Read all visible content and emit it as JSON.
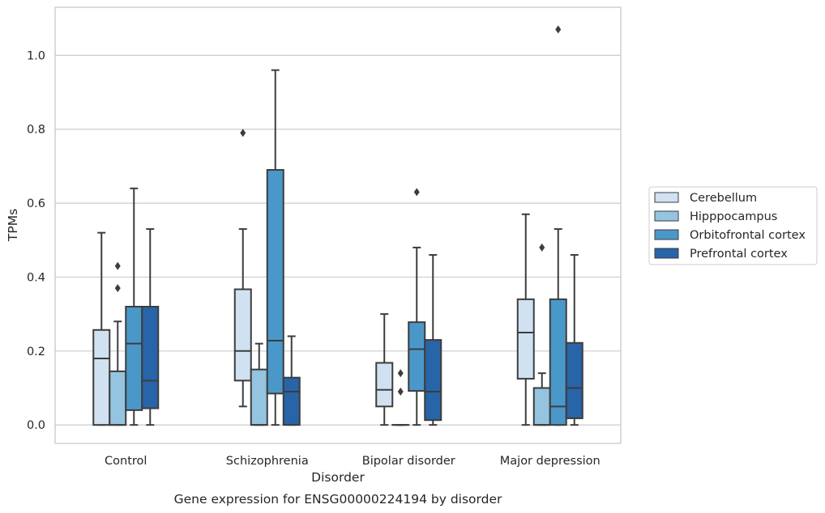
{
  "chart_data": {
    "type": "box",
    "caption": "Gene expression for ENSG00000224194 by disorder",
    "xlabel": "Disorder",
    "ylabel": "TPMs",
    "ylim": [
      -0.05,
      1.13
    ],
    "yticks": [
      0.0,
      0.2,
      0.4,
      0.6,
      0.8,
      1.0
    ],
    "ytick_labels": [
      "0.0",
      "0.2",
      "0.4",
      "0.6",
      "0.8",
      "1.0"
    ],
    "grid": "horizontal",
    "legend_position": "right",
    "categories": [
      "Control",
      "Schizophrenia",
      "Bipolar disorder",
      "Major depression"
    ],
    "series": [
      {
        "name": "Cerebellum",
        "color": "#d0e1f1",
        "boxes": [
          {
            "whisker_low": 0.0,
            "q1": 0.0,
            "median": 0.18,
            "q3": 0.257,
            "whisker_high": 0.52,
            "outliers": []
          },
          {
            "whisker_low": 0.05,
            "q1": 0.12,
            "median": 0.2,
            "q3": 0.367,
            "whisker_high": 0.53,
            "outliers": [
              0.79
            ]
          },
          {
            "whisker_low": 0.0,
            "q1": 0.05,
            "median": 0.095,
            "q3": 0.168,
            "whisker_high": 0.3,
            "outliers": []
          },
          {
            "whisker_low": 0.0,
            "q1": 0.125,
            "median": 0.25,
            "q3": 0.34,
            "whisker_high": 0.57,
            "outliers": []
          }
        ]
      },
      {
        "name": "Hipppocampus",
        "color": "#94c4df",
        "boxes": [
          {
            "whisker_low": 0.0,
            "q1": 0.0,
            "median": 0.0,
            "q3": 0.145,
            "whisker_high": 0.28,
            "outliers": [
              0.37,
              0.43
            ]
          },
          {
            "whisker_low": 0.0,
            "q1": 0.0,
            "median": 0.0,
            "q3": 0.15,
            "whisker_high": 0.22,
            "outliers": []
          },
          {
            "whisker_low": 0.0,
            "q1": 0.0,
            "median": 0.0,
            "q3": 0.0,
            "whisker_high": 0.0,
            "outliers": [
              0.09,
              0.14
            ]
          },
          {
            "whisker_low": 0.0,
            "q1": 0.0,
            "median": 0.0,
            "q3": 0.1,
            "whisker_high": 0.14,
            "outliers": [
              0.48
            ]
          }
        ]
      },
      {
        "name": "Orbitofrontal cortex",
        "color": "#4a98c9",
        "boxes": [
          {
            "whisker_low": 0.0,
            "q1": 0.04,
            "median": 0.22,
            "q3": 0.32,
            "whisker_high": 0.64,
            "outliers": []
          },
          {
            "whisker_low": 0.0,
            "q1": 0.085,
            "median": 0.228,
            "q3": 0.69,
            "whisker_high": 0.96,
            "outliers": []
          },
          {
            "whisker_low": 0.0,
            "q1": 0.092,
            "median": 0.205,
            "q3": 0.278,
            "whisker_high": 0.48,
            "outliers": [
              0.63
            ]
          },
          {
            "whisker_low": 0.0,
            "q1": 0.0,
            "median": 0.05,
            "q3": 0.34,
            "whisker_high": 0.53,
            "outliers": [
              1.07
            ]
          }
        ]
      },
      {
        "name": "Prefrontal cortex",
        "color": "#2864a8",
        "boxes": [
          {
            "whisker_low": 0.0,
            "q1": 0.045,
            "median": 0.12,
            "q3": 0.32,
            "whisker_high": 0.53,
            "outliers": []
          },
          {
            "whisker_low": 0.0,
            "q1": 0.0,
            "median": 0.09,
            "q3": 0.128,
            "whisker_high": 0.24,
            "outliers": []
          },
          {
            "whisker_low": 0.0,
            "q1": 0.013,
            "median": 0.09,
            "q3": 0.23,
            "whisker_high": 0.46,
            "outliers": []
          },
          {
            "whisker_low": 0.0,
            "q1": 0.018,
            "median": 0.1,
            "q3": 0.222,
            "whisker_high": 0.46,
            "outliers": []
          }
        ]
      }
    ],
    "colors": {
      "line": "#3d3d3d",
      "grid": "#cccccc",
      "frame": "#c8c8c8",
      "outlier": "#3d3d3d"
    }
  }
}
